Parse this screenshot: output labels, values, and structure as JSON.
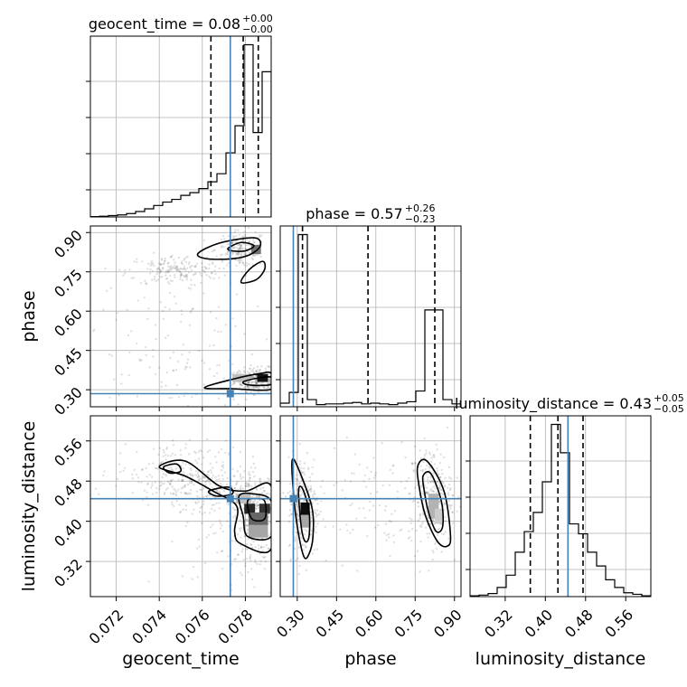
{
  "chart_data": {
    "type": "corner",
    "parameters": [
      "geocent_time",
      "phase",
      "luminosity_distance"
    ],
    "truths": {
      "geocent_time": 0.0773,
      "phase": 0.285,
      "luminosity_distance": 0.445
    },
    "colors": {
      "truth": "#4682b4",
      "hist": "#000000",
      "grid": "#b0b0b0"
    },
    "ranges": {
      "geocent_time": [
        0.0708,
        0.0792
      ],
      "phase": [
        0.235,
        0.925
      ],
      "luminosity_distance": [
        0.25,
        0.61
      ]
    },
    "ticks": {
      "geocent_time": [
        {
          "v": 0.072,
          "label": "0.072"
        },
        {
          "v": 0.074,
          "label": "0.074"
        },
        {
          "v": 0.076,
          "label": "0.076"
        },
        {
          "v": 0.078,
          "label": "0.078"
        }
      ],
      "phase": [
        {
          "v": 0.3,
          "label": "0.30"
        },
        {
          "v": 0.45,
          "label": "0.45"
        },
        {
          "v": 0.6,
          "label": "0.60"
        },
        {
          "v": 0.75,
          "label": "0.75"
        },
        {
          "v": 0.9,
          "label": "0.90"
        }
      ],
      "luminosity_distance": [
        {
          "v": 0.32,
          "label": "0.32"
        },
        {
          "v": 0.4,
          "label": "0.40"
        },
        {
          "v": 0.48,
          "label": "0.48"
        },
        {
          "v": 0.56,
          "label": "0.56"
        }
      ]
    },
    "diagonal": [
      {
        "param": "geocent_time",
        "title": {
          "main": "geocent_time = 0.08",
          "sup": "+0.00",
          "sub": "−0.00"
        },
        "quantiles": [
          0.0764,
          0.0779,
          0.0786
        ],
        "bins": [
          0.0708,
          0.07122,
          0.07164,
          0.07206,
          0.07248,
          0.0729,
          0.07332,
          0.07374,
          0.07416,
          0.07458,
          0.075,
          0.07542,
          0.07584,
          0.07626,
          0.07668,
          0.0771,
          0.07752,
          0.07794,
          0.07836,
          0.07878,
          0.0792
        ],
        "counts": [
          0.5,
          1,
          2,
          3,
          5,
          8,
          12,
          17,
          22,
          26,
          32,
          36,
          42,
          52,
          64,
          95,
          135,
          255,
          125,
          215
        ]
      },
      {
        "param": "phase",
        "title": {
          "main": "phase = 0.57",
          "sup": "+0.26",
          "sub": "−0.23"
        },
        "quantiles": [
          0.32,
          0.57,
          0.825
        ],
        "bins": [
          0.235,
          0.2695,
          0.304,
          0.3385,
          0.373,
          0.4075,
          0.442,
          0.4765,
          0.511,
          0.5455,
          0.58,
          0.6145,
          0.649,
          0.6835,
          0.718,
          0.7525,
          0.787,
          0.8215,
          0.856,
          0.8905,
          0.925
        ],
        "counts": [
          5,
          20,
          240,
          10,
          3,
          4,
          4,
          5,
          6,
          4,
          5,
          4,
          3,
          5,
          7,
          22,
          135,
          135,
          10,
          4
        ]
      },
      {
        "param": "luminosity_distance",
        "title": {
          "main": "luminosity_distance = 0.43",
          "sup": "+0.05",
          "sub": "−0.05"
        },
        "quantiles": [
          0.37,
          0.425,
          0.475
        ],
        "bins": [
          0.25,
          0.268,
          0.286,
          0.304,
          0.322,
          0.34,
          0.358,
          0.376,
          0.394,
          0.412,
          0.43,
          0.448,
          0.466,
          0.484,
          0.502,
          0.52,
          0.538,
          0.556,
          0.574,
          0.592,
          0.61
        ],
        "counts": [
          1,
          2,
          4,
          12,
          28,
          58,
          85,
          110,
          150,
          225,
          188,
          95,
          82,
          58,
          40,
          22,
          12,
          5,
          3,
          1
        ]
      }
    ],
    "pairs": [
      {
        "x": "geocent_time",
        "y": "phase",
        "clusters": [
          {
            "cx": 0.0786,
            "cy": 0.338,
            "sx": 0.00055,
            "sy": 0.022,
            "n": 320
          },
          {
            "cx": 0.0778,
            "cy": 0.835,
            "sx": 0.0006,
            "sy": 0.035,
            "n": 200
          },
          {
            "cx": 0.0747,
            "cy": 0.755,
            "sx": 0.0011,
            "sy": 0.03,
            "n": 180
          },
          {
            "cx": 0.0745,
            "cy": 0.43,
            "sx": 0.0022,
            "sy": 0.17,
            "n": 160
          }
        ],
        "density": [
          {
            "x": 0.0785,
            "y": 0.835,
            "w": 0.00045,
            "h": 0.035,
            "shade": 0.55
          },
          {
            "x": 0.0788,
            "y": 0.345,
            "w": 0.0005,
            "h": 0.03,
            "shade": 0.92
          },
          {
            "x": 0.0778,
            "y": 0.345,
            "w": 0.0008,
            "h": 0.03,
            "shade": 0.25
          }
        ],
        "contours": [
          [
            [
              0.0761,
              0.308
            ],
            [
              0.0775,
              0.342
            ],
            [
              0.0787,
              0.362
            ],
            [
              0.0792,
              0.362
            ],
            [
              0.0792,
              0.302
            ],
            [
              0.0774,
              0.304
            ]
          ],
          [
            [
              0.0779,
              0.33
            ],
            [
              0.0786,
              0.345
            ],
            [
              0.0792,
              0.348
            ],
            [
              0.0792,
              0.32
            ],
            [
              0.0782,
              0.318
            ]
          ],
          [
            [
              0.0758,
              0.82
            ],
            [
              0.0768,
              0.86
            ],
            [
              0.0784,
              0.88
            ],
            [
              0.0787,
              0.85
            ],
            [
              0.0782,
              0.815
            ],
            [
              0.0774,
              0.8
            ],
            [
              0.0762,
              0.8
            ]
          ],
          [
            [
              0.0772,
              0.84
            ],
            [
              0.0778,
              0.862
            ],
            [
              0.0784,
              0.85
            ],
            [
              0.078,
              0.83
            ],
            [
              0.0774,
              0.83
            ]
          ],
          [
            [
              0.0778,
              0.71
            ],
            [
              0.0782,
              0.76
            ],
            [
              0.0788,
              0.79
            ],
            [
              0.0789,
              0.76
            ],
            [
              0.0785,
              0.72
            ]
          ]
        ]
      },
      {
        "x": "geocent_time",
        "y": "luminosity_distance",
        "clusters": [
          {
            "cx": 0.0786,
            "cy": 0.41,
            "sx": 0.0006,
            "sy": 0.04,
            "n": 340
          },
          {
            "cx": 0.0764,
            "cy": 0.46,
            "sx": 0.0012,
            "sy": 0.03,
            "n": 200
          },
          {
            "cx": 0.0745,
            "cy": 0.5,
            "sx": 0.0013,
            "sy": 0.03,
            "n": 170
          },
          {
            "cx": 0.0775,
            "cy": 0.37,
            "sx": 0.0012,
            "sy": 0.06,
            "n": 90
          }
        ],
        "density": [
          {
            "x": 0.0782,
            "y": 0.425,
            "w": 0.0005,
            "h": 0.02,
            "shade": 0.85
          },
          {
            "x": 0.0789,
            "y": 0.425,
            "w": 0.0005,
            "h": 0.02,
            "shade": 0.8
          },
          {
            "x": 0.0786,
            "y": 0.405,
            "w": 0.0009,
            "h": 0.025,
            "shade": 0.6
          },
          {
            "x": 0.0786,
            "y": 0.38,
            "w": 0.0009,
            "h": 0.025,
            "shade": 0.35
          },
          {
            "x": 0.0779,
            "y": 0.445,
            "w": 0.0007,
            "h": 0.02,
            "shade": 0.25
          }
        ],
        "contours": [
          [
            [
              0.074,
              0.508
            ],
            [
              0.0752,
              0.52
            ],
            [
              0.0768,
              0.47
            ],
            [
              0.078,
              0.46
            ],
            [
              0.0792,
              0.47
            ],
            [
              0.0792,
              0.345
            ],
            [
              0.0778,
              0.355
            ],
            [
              0.0775,
              0.38
            ],
            [
              0.0776,
              0.43
            ],
            [
              0.0765,
              0.46
            ],
            [
              0.0752,
              0.49
            ]
          ],
          [
            [
              0.0777,
              0.45
            ],
            [
              0.0783,
              0.455
            ],
            [
              0.0792,
              0.44
            ],
            [
              0.0792,
              0.37
            ],
            [
              0.0781,
              0.37
            ],
            [
              0.0779,
              0.41
            ]
          ],
          [
            [
              0.0781,
              0.44
            ],
            [
              0.0785,
              0.445
            ],
            [
              0.0789,
              0.44
            ],
            [
              0.0789,
              0.405
            ],
            [
              0.0783,
              0.405
            ]
          ],
          [
            [
              0.0742,
              0.508
            ],
            [
              0.0748,
              0.514
            ],
            [
              0.075,
              0.5
            ],
            [
              0.0745,
              0.496
            ]
          ],
          [
            [
              0.0763,
              0.46
            ],
            [
              0.0772,
              0.468
            ],
            [
              0.0774,
              0.455
            ],
            [
              0.0767,
              0.45
            ]
          ]
        ]
      },
      {
        "x": "phase",
        "y": "luminosity_distance",
        "clusters": [
          {
            "cx": 0.325,
            "cy": 0.43,
            "sx": 0.03,
            "sy": 0.05,
            "n": 280
          },
          {
            "cx": 0.81,
            "cy": 0.45,
            "sx": 0.04,
            "sy": 0.05,
            "n": 280
          },
          {
            "cx": 0.57,
            "cy": 0.44,
            "sx": 0.12,
            "sy": 0.06,
            "n": 90
          }
        ],
        "density": [
          {
            "x": 0.33,
            "y": 0.425,
            "w": 0.035,
            "h": 0.025,
            "shade": 0.95
          },
          {
            "x": 0.33,
            "y": 0.4,
            "w": 0.035,
            "h": 0.025,
            "shade": 0.35
          },
          {
            "x": 0.82,
            "y": 0.43,
            "w": 0.04,
            "h": 0.05,
            "shade": 0.3
          },
          {
            "x": 0.84,
            "y": 0.41,
            "w": 0.03,
            "h": 0.03,
            "shade": 0.2
          }
        ],
        "contours": [
          [
            [
              0.28,
              0.52
            ],
            [
              0.3,
              0.51
            ],
            [
              0.355,
              0.43
            ],
            [
              0.36,
              0.37
            ],
            [
              0.345,
              0.335
            ],
            [
              0.325,
              0.33
            ],
            [
              0.3,
              0.39
            ],
            [
              0.285,
              0.46
            ]
          ],
          [
            [
              0.305,
              0.46
            ],
            [
              0.32,
              0.465
            ],
            [
              0.345,
              0.42
            ],
            [
              0.345,
              0.37
            ],
            [
              0.33,
              0.36
            ],
            [
              0.315,
              0.39
            ]
          ],
          [
            [
              0.76,
              0.51
            ],
            [
              0.795,
              0.52
            ],
            [
              0.86,
              0.46
            ],
            [
              0.885,
              0.37
            ],
            [
              0.87,
              0.35
            ],
            [
              0.835,
              0.36
            ],
            [
              0.79,
              0.41
            ],
            [
              0.765,
              0.47
            ]
          ],
          [
            [
              0.78,
              0.49
            ],
            [
              0.81,
              0.495
            ],
            [
              0.85,
              0.44
            ],
            [
              0.855,
              0.39
            ],
            [
              0.83,
              0.38
            ],
            [
              0.8,
              0.42
            ],
            [
              0.785,
              0.46
            ]
          ]
        ]
      }
    ]
  }
}
